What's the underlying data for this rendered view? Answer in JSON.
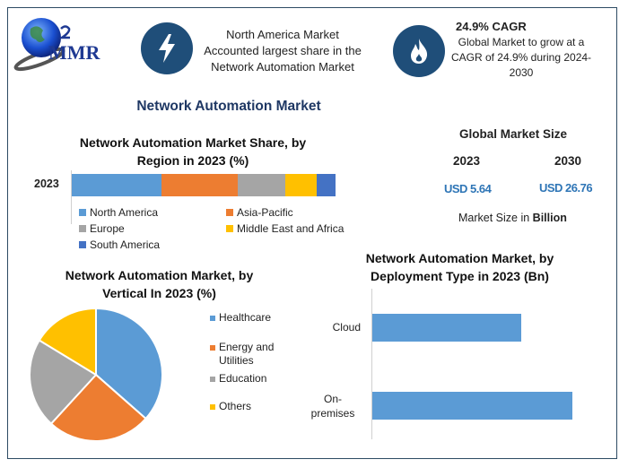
{
  "header": {
    "logo_text": "MMR",
    "highlight1": {
      "icon": "lightning-bolt-icon",
      "text": [
        "North America Market",
        "Accounted largest share in the",
        "Network Automation Market"
      ]
    },
    "highlight2": {
      "icon": "flame-icon",
      "title": "24.9% CAGR",
      "text": [
        "Global Market to grow at a",
        "CAGR of 24.9% during 2024-",
        "2030"
      ]
    }
  },
  "main_title": "Network Automation Market",
  "market_size": {
    "title": "Global Market Size",
    "year1": "2023",
    "year2": "2030",
    "value1": "USD 5.64",
    "value2": "USD 26.76",
    "unit_prefix": "Market Size in ",
    "unit_bold": "Billion"
  },
  "colors": {
    "blue": "#5b9bd5",
    "orange": "#ed7d31",
    "gray": "#a5a5a5",
    "yellow": "#ffc000",
    "dark_blue": "#4472c4",
    "navy": "#1f4e79",
    "accent_text": "#2e75b6"
  },
  "chart_data": [
    {
      "type": "bar",
      "orientation": "horizontal",
      "stacked": true,
      "title": "Network Automation Market Share, by Region in 2023 (%)",
      "categories": [
        "2023"
      ],
      "series": [
        {
          "name": "North America",
          "values": [
            34
          ]
        },
        {
          "name": "Asia-Pacific",
          "values": [
            29
          ]
        },
        {
          "name": "Europe",
          "values": [
            18
          ]
        },
        {
          "name": "Middle East and Africa",
          "values": [
            12
          ]
        },
        {
          "name": "South America",
          "values": [
            7
          ]
        }
      ],
      "legend": "bottom"
    },
    {
      "type": "pie",
      "title": "Network Automation Market, by Vertical In 2023 (%)",
      "labels": [
        "Healthcare",
        "Energy and Utilities",
        "Education",
        "Others"
      ],
      "values": [
        36.5,
        25.3,
        21.9,
        16.3
      ],
      "legend": "right"
    },
    {
      "type": "bar",
      "orientation": "horizontal",
      "title": "Network Automation Market, by Deployment Type in 2023 (Bn)",
      "categories": [
        "Cloud",
        "On-premises"
      ],
      "values": [
        2.41,
        3.23
      ],
      "xlim": [
        0,
        3.5
      ]
    }
  ]
}
